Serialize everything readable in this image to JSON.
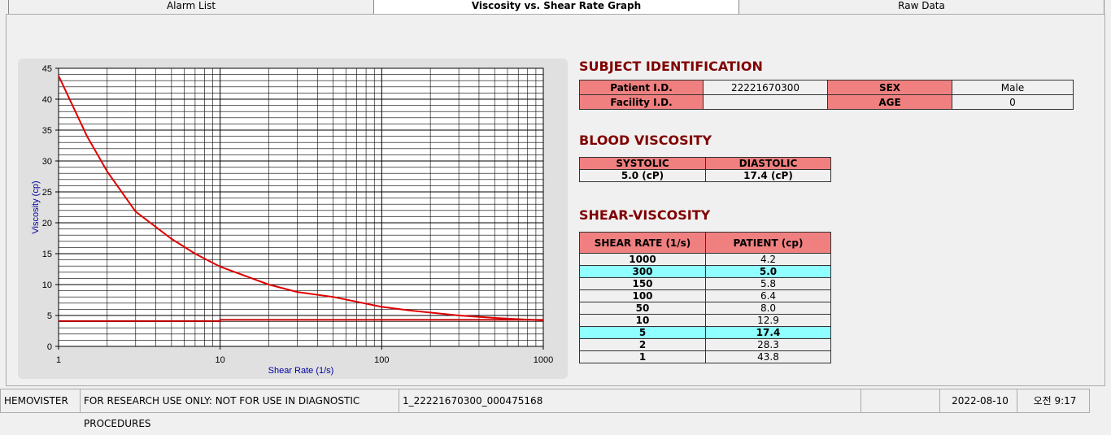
{
  "tabs": [
    "Alarm List",
    "Viscosity vs. Shear Rate Graph",
    "Raw Data"
  ],
  "chart_data": {
    "type": "line",
    "x_label": "Shear Rate (1/s)",
    "y_label": "Viscosity (cp)",
    "log_x": true,
    "grid": true,
    "xlim": [
      1,
      1000
    ],
    "xticks": [
      1,
      10,
      100,
      1000
    ],
    "ylim": [
      0,
      45
    ],
    "yticks": [
      0,
      5,
      10,
      15,
      20,
      25,
      30,
      35,
      40,
      45
    ],
    "series": [
      {
        "color": "#e00000",
        "x": [
          1,
          1.5,
          2,
          3,
          5,
          7,
          10,
          20,
          30,
          50,
          100,
          150,
          300,
          500,
          1000
        ],
        "values": [
          43.8,
          34,
          28.3,
          21.8,
          17.4,
          15,
          12.9,
          10,
          8.8,
          8.0,
          6.4,
          5.8,
          5.0,
          4.6,
          4.2
        ]
      },
      {
        "color": "#c00000",
        "x": [
          1,
          10,
          10,
          1000
        ],
        "values": [
          4.1,
          4.1,
          4.3,
          4.3
        ]
      }
    ]
  },
  "subject": {
    "title": "SUBJECT IDENTIFICATION",
    "patient_id_label": "Patient I.D.",
    "patient_id": "22221670300",
    "sex_label": "SEX",
    "sex": "Male",
    "facility_label": "Facility I.D.",
    "age_label": "AGE",
    "age": "0"
  },
  "blood": {
    "title": "BLOOD VISCOSITY",
    "headers": [
      "SYSTOLIC",
      "DIASTOLIC"
    ],
    "values": [
      "5.0 (cP)",
      "17.4 (cP)"
    ]
  },
  "shear": {
    "title": "SHEAR-VISCOSITY",
    "headers": [
      "SHEAR RATE (1/s)",
      "PATIENT (cp)"
    ],
    "highlight": [
      1,
      6
    ],
    "rows": [
      [
        "1000",
        "4.2"
      ],
      [
        "300",
        "5.0"
      ],
      [
        "150",
        "5.8"
      ],
      [
        "100",
        "6.4"
      ],
      [
        "50",
        "8.0"
      ],
      [
        "10",
        "12.9"
      ],
      [
        "5",
        "17.4"
      ],
      [
        "2",
        "28.3"
      ],
      [
        "1",
        "43.8"
      ]
    ]
  },
  "status": {
    "app": "HEMOVISTER",
    "notice": "FOR RESEARCH USE ONLY: NOT FOR USE IN DIAGNOSTIC PROCEDURES",
    "file": "1_22221670300_000475168",
    "date": "2022-08-10",
    "time": "오전 9:17"
  }
}
